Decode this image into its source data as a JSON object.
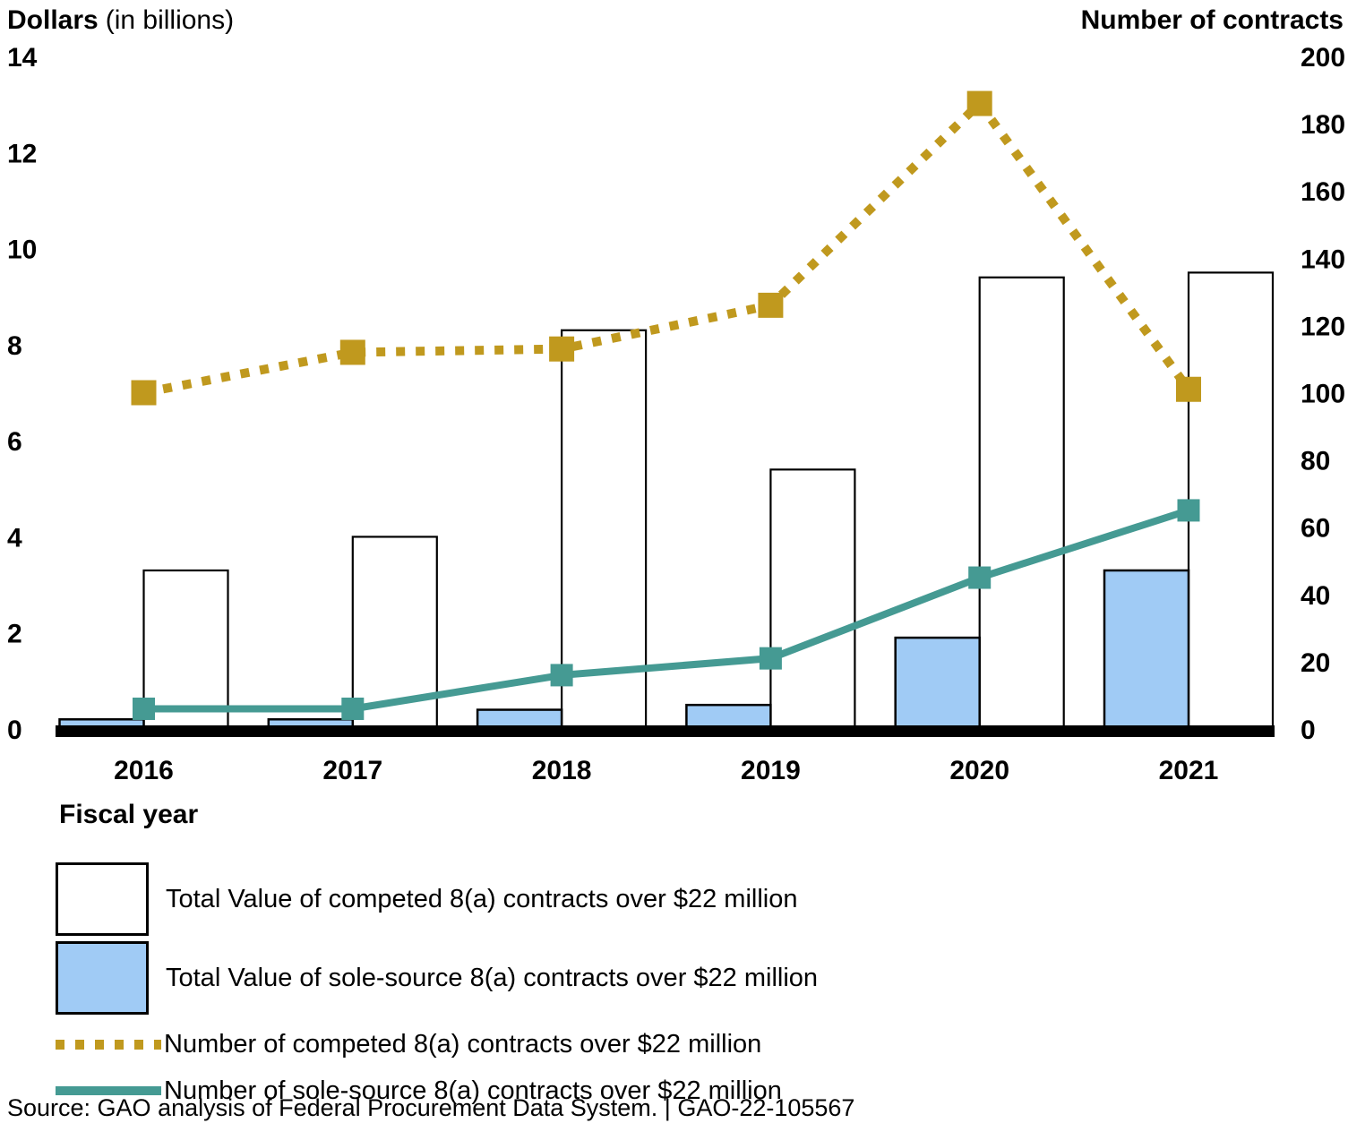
{
  "header": {
    "left_title": "Dollars",
    "left_subtitle": "(in billions)",
    "right_title": "Number of contracts"
  },
  "chart_data": {
    "type": "combo_bar_line",
    "categories": [
      "2016",
      "2017",
      "2018",
      "2019",
      "2020",
      "2021"
    ],
    "series": [
      {
        "id": "competed-value",
        "type": "bar",
        "axis": "left",
        "name": "Total Value of competed 8(a) contracts over $22 million",
        "values": [
          3.3,
          4.0,
          8.3,
          5.4,
          9.4,
          9.5
        ],
        "fill": "#FFFFFF",
        "stroke": "#000000"
      },
      {
        "id": "sole-source-value",
        "type": "bar",
        "axis": "left",
        "name": "Total Value of sole-source 8(a) contracts over $22 million",
        "values": [
          0.2,
          0.2,
          0.4,
          0.5,
          1.9,
          3.3
        ],
        "fill": "#A0CBF5",
        "stroke": "#000000"
      },
      {
        "id": "competed-count",
        "type": "line",
        "line_style": "dotted",
        "axis": "right",
        "name": "Number of competed 8(a) contracts over $22 million",
        "values": [
          100,
          112,
          113,
          126,
          186,
          101
        ],
        "color": "#C0991E"
      },
      {
        "id": "sole-source-count",
        "type": "line",
        "line_style": "solid",
        "axis": "right",
        "name": "Number of sole-source 8(a) contracts over $22 million",
        "values": [
          6,
          6,
          16,
          21,
          45,
          65
        ],
        "color": "#459A93"
      }
    ],
    "left_axis": {
      "title": "Dollars",
      "subtitle": "(in billions)",
      "min": 0,
      "max": 14,
      "ticks": [
        0,
        2,
        4,
        6,
        8,
        10,
        12,
        14
      ]
    },
    "right_axis": {
      "title": "Number of contracts",
      "min": 0,
      "max": 200,
      "ticks": [
        0,
        20,
        40,
        60,
        80,
        100,
        120,
        140,
        160,
        180,
        200
      ]
    },
    "xlabel": "Fiscal year",
    "legend_position": "bottom",
    "grid": false
  },
  "source_line": "Source: GAO analysis of Federal Procurement Data System.  |  GAO-22-105567"
}
